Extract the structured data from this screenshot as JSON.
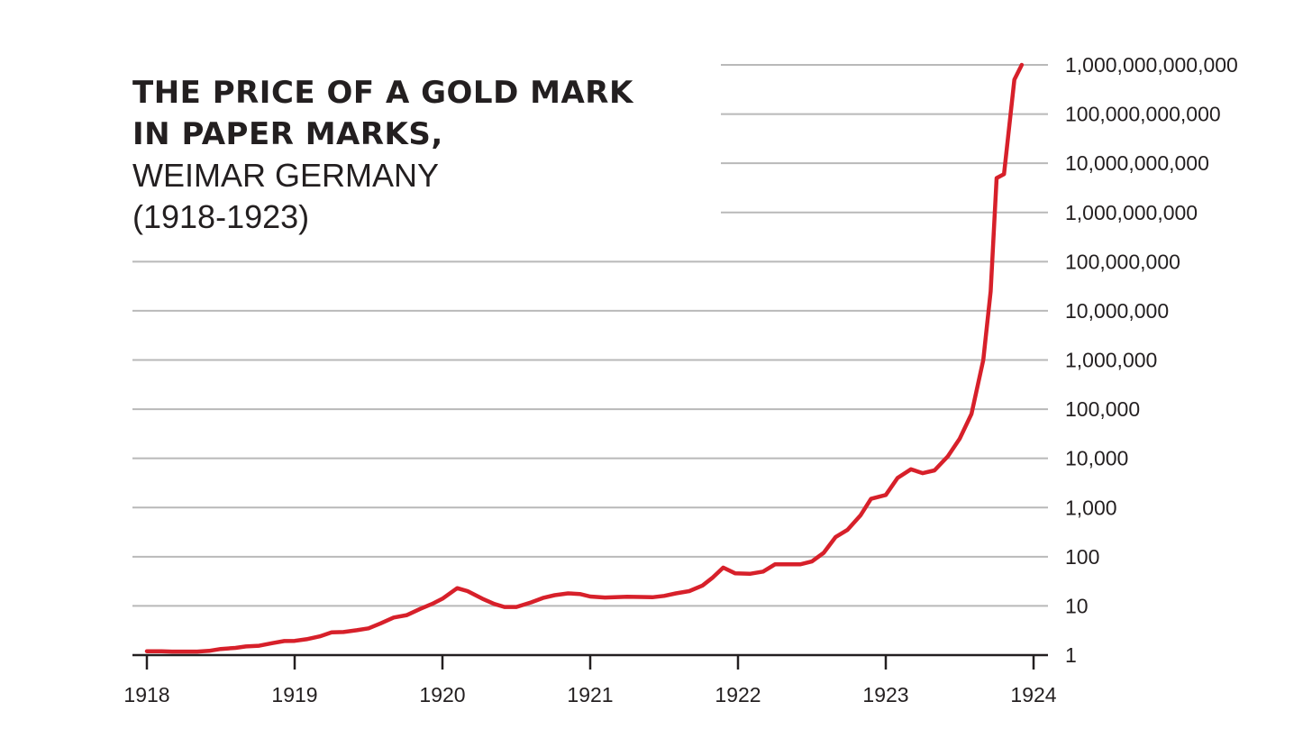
{
  "chart_data": {
    "type": "line",
    "title_lines": [
      "THE PRICE OF A GOLD MARK",
      "IN PAPER MARKS,"
    ],
    "subtitle_lines": [
      "WEIMAR GERMANY",
      "(1918-1923)"
    ],
    "x_ticks": [
      "1918",
      "1919",
      "1920",
      "1921",
      "1922",
      "1923",
      "1924"
    ],
    "xlim": [
      1918,
      1924
    ],
    "y_scale": "log",
    "y_ticks": [
      {
        "value": 1,
        "label": "1"
      },
      {
        "value": 10,
        "label": "10"
      },
      {
        "value": 100,
        "label": "100"
      },
      {
        "value": 1000,
        "label": "1,000"
      },
      {
        "value": 10000,
        "label": "10,000"
      },
      {
        "value": 100000,
        "label": "100,000"
      },
      {
        "value": 1000000,
        "label": "1,000,000"
      },
      {
        "value": 10000000,
        "label": "10,000,000"
      },
      {
        "value": 100000000,
        "label": "100,000,000"
      },
      {
        "value": 1000000000,
        "label": "1,000,000,000"
      },
      {
        "value": 10000000000,
        "label": "10,000,000,000"
      },
      {
        "value": 100000000000,
        "label": "100,000,000,000"
      },
      {
        "value": 1000000000000,
        "label": "1,000,000,000,000"
      }
    ],
    "ylim": [
      1,
      1000000000000
    ],
    "grid": true,
    "line_color": "#d7202a",
    "series": [
      {
        "x": [
          1918.0,
          1918.1,
          1918.17,
          1918.34,
          1918.42,
          1918.5,
          1918.6,
          1918.67,
          1918.76,
          1918.85,
          1918.93,
          1919.0,
          1919.08,
          1919.17,
          1919.25,
          1919.33,
          1919.42,
          1919.5,
          1919.58,
          1919.67,
          1919.76,
          1919.85,
          1919.93,
          1920.0,
          1920.1,
          1920.17,
          1920.27,
          1920.35,
          1920.42,
          1920.5,
          1920.6,
          1920.68,
          1920.76,
          1920.85,
          1920.93,
          1921.0,
          1921.1,
          1921.25,
          1921.34,
          1921.42,
          1921.5,
          1921.58,
          1921.67,
          1921.76,
          1921.83,
          1921.9,
          1921.98,
          1922.08,
          1922.17,
          1922.25,
          1922.34,
          1922.42,
          1922.5,
          1922.58,
          1922.66,
          1922.74,
          1922.83,
          1922.9,
          1923.0,
          1923.08,
          1923.17,
          1923.25,
          1923.33,
          1923.42,
          1923.5,
          1923.58,
          1923.66,
          1923.71,
          1923.75,
          1923.8,
          1923.87,
          1923.92
        ],
        "values": [
          1.2,
          1.2,
          1.18,
          1.18,
          1.22,
          1.33,
          1.4,
          1.5,
          1.55,
          1.75,
          1.93,
          1.95,
          2.1,
          2.4,
          2.9,
          2.95,
          3.2,
          3.5,
          4.4,
          5.8,
          6.5,
          8.7,
          11,
          14,
          23,
          20,
          14,
          11,
          9.5,
          9.5,
          11.8,
          14.5,
          16.5,
          18,
          17.5,
          15.5,
          14.8,
          15.3,
          15.2,
          15,
          16,
          18,
          20,
          26,
          38,
          60,
          46,
          45,
          50,
          70,
          70,
          70,
          80,
          120,
          250,
          350,
          700,
          1500,
          1800,
          4000,
          6000,
          5000,
          5700,
          11000,
          25000,
          80000,
          1000000,
          25000000,
          5000000000,
          6000000000,
          500000000000,
          1000000000000
        ]
      }
    ]
  }
}
